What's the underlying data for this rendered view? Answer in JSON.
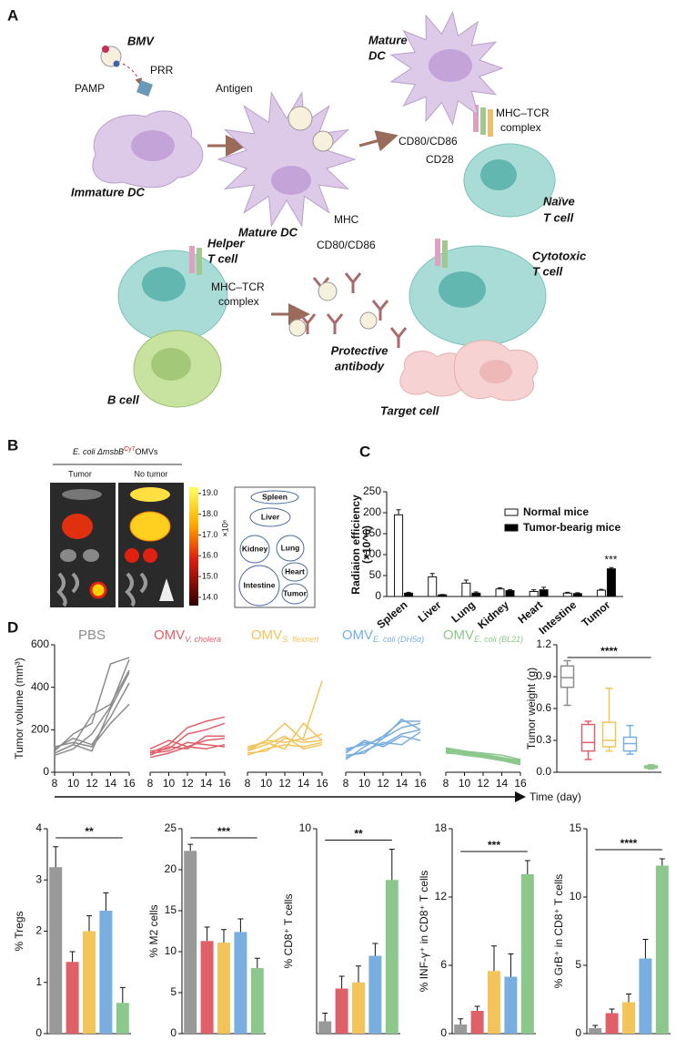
{
  "panel_labels": [
    "A",
    "B",
    "C",
    "D"
  ],
  "diagram": {
    "bmv": "BMV",
    "pamp": "PAMP",
    "prr": "PRR",
    "immature_dc": "Immature DC",
    "antigen": "Antigen",
    "mhc": "MHC",
    "cd80_cd86_1": "CD80/CD86",
    "mature_dc_1": "Mature DC",
    "mature_dc_2": [
      "Mature",
      "DC"
    ],
    "mhc_tcr_1": [
      "MHC–TCR",
      "complex"
    ],
    "cd80_cd86_2": "CD80/CD86",
    "cd28": "CD28",
    "naive_t": [
      "Naïve",
      "T cell"
    ],
    "helper_t": [
      "Helper",
      "T cell"
    ],
    "mhc_tcr_2": [
      "MHC–TCR",
      "complex"
    ],
    "b_cell": "B cell",
    "antibody": [
      "Protective",
      "antibody"
    ],
    "cytotoxic_t": [
      "Cytotoxic",
      "T cell"
    ],
    "target_cell": "Target cell"
  },
  "imaging": {
    "title_pre": "E. coli ΔmsbB",
    "title_sup": "Cy7",
    "title_post": "OMVs",
    "columns": [
      "Tumor",
      "No tumor"
    ],
    "colorbar": {
      "lim": [
        13.6,
        19.3
      ],
      "ticks": [
        {
          "value": 19,
          "label": "19.0"
        },
        {
          "value": 18,
          "label": "18.0"
        },
        {
          "value": 17,
          "label": "17.0"
        },
        {
          "value": 16,
          "label": "16.0"
        },
        {
          "value": 15,
          "label": "15.0"
        },
        {
          "value": 14,
          "label": "14.0"
        }
      ],
      "unit": "×10⁶"
    },
    "organs": [
      "Spleen",
      "Liver",
      "Kidney",
      "Lung",
      "Heart",
      "Intestine",
      "Tumor"
    ]
  },
  "chart_data": [
    {
      "type": "bar",
      "ylabel": [
        "Radiaion efficiency",
        "(×10^6)"
      ],
      "categories": [
        "Spleen",
        "Liver",
        "Lung",
        "Kidney",
        "Heart",
        "Intestine",
        "Tumor"
      ],
      "series": [
        {
          "name": "Normal mice",
          "color": "#ffffff",
          "values": [
            195,
            47,
            32,
            18,
            12,
            8,
            15
          ],
          "errors": [
            12,
            8,
            7,
            3,
            4,
            2,
            2
          ]
        },
        {
          "name": "Tumor-bearig mice",
          "color": "#000000",
          "values": [
            8,
            4,
            8,
            14,
            16,
            7,
            66
          ],
          "errors": [
            2,
            1,
            3,
            2,
            6,
            2,
            3
          ]
        }
      ],
      "ylim": [
        0,
        250
      ],
      "yticks": [
        0,
        50,
        100,
        150,
        200,
        250
      ],
      "legend": "upper right",
      "annotation": "***"
    },
    {
      "type": "line",
      "title": {
        "main": "PBS"
      },
      "color": "#8c8c8c",
      "ylabel": "Tumor volume (mm³)",
      "xlabel": "Time (day)",
      "x": [
        8,
        10,
        12,
        14,
        16
      ],
      "xlim": [
        8,
        16
      ],
      "xticks": [
        8,
        10,
        12,
        14,
        16
      ],
      "ylim": [
        0,
        600
      ],
      "yticks": [
        0,
        200,
        400,
        600
      ],
      "series": [
        {
          "values": [
            90,
            130,
            270,
            320,
            480
          ]
        },
        {
          "values": [
            100,
            180,
            230,
            510,
            540
          ]
        },
        {
          "values": [
            80,
            110,
            180,
            310,
            530
          ]
        },
        {
          "values": [
            120,
            140,
            120,
            230,
            320
          ]
        },
        {
          "values": [
            110,
            160,
            130,
            260,
            420
          ]
        },
        {
          "values": [
            90,
            130,
            100,
            300,
            470
          ]
        }
      ]
    },
    {
      "type": "line",
      "title": {
        "main": "OMV",
        "sub": "V. cholera"
      },
      "color": "#e0606a",
      "x": [
        8,
        10,
        12,
        14,
        16
      ],
      "xlim": [
        8,
        16
      ],
      "xticks": [
        8,
        10,
        12,
        14,
        16
      ],
      "ylim": [
        0,
        600
      ],
      "series": [
        {
          "values": [
            90,
            130,
            210,
            240,
            260
          ]
        },
        {
          "values": [
            80,
            120,
            110,
            170,
            170
          ]
        },
        {
          "values": [
            100,
            110,
            180,
            200,
            230
          ]
        },
        {
          "values": [
            70,
            90,
            120,
            110,
            130
          ]
        },
        {
          "values": [
            110,
            150,
            120,
            150,
            160
          ]
        },
        {
          "values": [
            90,
            100,
            140,
            130,
            120
          ]
        }
      ]
    },
    {
      "type": "line",
      "title": {
        "main": "OMV",
        "sub": "S. flexneri"
      },
      "color": "#f2c45a",
      "x": [
        8,
        10,
        12,
        14,
        16
      ],
      "xlim": [
        8,
        16
      ],
      "xticks": [
        8,
        10,
        12,
        14,
        16
      ],
      "ylim": [
        0,
        600
      ],
      "series": [
        {
          "values": [
            100,
            150,
            140,
            160,
            430
          ]
        },
        {
          "values": [
            110,
            150,
            230,
            150,
            180
          ]
        },
        {
          "values": [
            120,
            140,
            110,
            230,
            150
          ]
        },
        {
          "values": [
            80,
            110,
            130,
            120,
            140
          ]
        },
        {
          "values": [
            90,
            100,
            160,
            140,
            150
          ]
        },
        {
          "values": [
            100,
            130,
            170,
            110,
            130
          ]
        }
      ]
    },
    {
      "type": "line",
      "title": {
        "main": "OMV",
        "sub": "E. coli (DH5α)"
      },
      "color": "#78aee0",
      "x": [
        8,
        10,
        12,
        14,
        16
      ],
      "xlim": [
        8,
        16
      ],
      "xticks": [
        8,
        10,
        12,
        14,
        16
      ],
      "ylim": [
        0,
        600
      ],
      "series": [
        {
          "values": [
            60,
            120,
            170,
            240,
            240
          ]
        },
        {
          "values": [
            100,
            140,
            130,
            180,
            200
          ]
        },
        {
          "values": [
            80,
            90,
            160,
            210,
            230
          ]
        },
        {
          "values": [
            70,
            100,
            140,
            130,
            190
          ]
        },
        {
          "values": [
            90,
            150,
            120,
            170,
            150
          ]
        },
        {
          "values": [
            110,
            130,
            160,
            250,
            200
          ]
        }
      ]
    },
    {
      "type": "line",
      "title": {
        "main": "OMV",
        "sub": "E. coli (BL21)"
      },
      "color": "#8cc88c",
      "x": [
        8,
        10,
        12,
        14,
        16
      ],
      "xlim": [
        8,
        16
      ],
      "xticks": [
        8,
        10,
        12,
        14,
        16
      ],
      "ylim": [
        0,
        600
      ],
      "series": [
        {
          "values": [
            110,
            100,
            90,
            80,
            60
          ]
        },
        {
          "values": [
            100,
            90,
            80,
            70,
            50
          ]
        },
        {
          "values": [
            90,
            85,
            75,
            60,
            40
          ]
        },
        {
          "values": [
            105,
            95,
            80,
            65,
            45
          ]
        },
        {
          "values": [
            95,
            80,
            70,
            55,
            35
          ]
        },
        {
          "values": [
            115,
            100,
            85,
            70,
            55
          ]
        }
      ]
    },
    {
      "type": "box",
      "ylabel": "Tumor weight (g)",
      "ylim": [
        0,
        1.2
      ],
      "yticks": [
        {
          "value": 0,
          "label": "0.0"
        },
        {
          "value": 0.3,
          "label": "0.3"
        },
        {
          "value": 0.6,
          "label": "0.6"
        },
        {
          "value": 0.9,
          "label": "0.9"
        },
        {
          "value": 1.2,
          "label": "1.2"
        }
      ],
      "annotation": "****",
      "colors": [
        "#8c8c8c",
        "#e0606a",
        "#f2c45a",
        "#78aee0",
        "#8cc88c"
      ],
      "boxes": [
        {
          "min": 0.63,
          "q1": 0.8,
          "median": 0.89,
          "q3": 1.0,
          "max": 1.05
        },
        {
          "min": 0.12,
          "q1": 0.2,
          "median": 0.28,
          "q3": 0.45,
          "max": 0.48
        },
        {
          "min": 0.2,
          "q1": 0.24,
          "median": 0.3,
          "q3": 0.47,
          "max": 0.79
        },
        {
          "min": 0.17,
          "q1": 0.2,
          "median": 0.27,
          "q3": 0.33,
          "max": 0.44
        },
        {
          "min": 0.03,
          "q1": 0.04,
          "median": 0.05,
          "q3": 0.06,
          "max": 0.07
        }
      ]
    },
    {
      "type": "bar",
      "ylabel": "% Tregs",
      "ylim": [
        0,
        4
      ],
      "yticks": [
        0,
        1,
        2,
        3,
        4
      ],
      "annotation": "**",
      "colors": [
        "#999999",
        "#e0606a",
        "#f2c45a",
        "#78aee0",
        "#8cc88c"
      ],
      "values": [
        3.25,
        1.4,
        2.0,
        2.4,
        0.6
      ],
      "errors": [
        0.4,
        0.2,
        0.3,
        0.35,
        0.3
      ]
    },
    {
      "type": "bar",
      "ylabel": "% M2 cells",
      "ylim": [
        0,
        25
      ],
      "yticks": [
        0,
        5,
        10,
        15,
        20,
        25
      ],
      "annotation": "***",
      "colors": [
        "#999999",
        "#e0606a",
        "#f2c45a",
        "#78aee0",
        "#8cc88c"
      ],
      "values": [
        22.3,
        11.3,
        11.1,
        12.4,
        8.0
      ],
      "errors": [
        0.8,
        1.7,
        1.6,
        1.6,
        1.2
      ]
    },
    {
      "type": "bar",
      "ylabel": "% CD8⁺ T cells",
      "ylim": [
        0,
        10
      ],
      "yticks": [
        10
      ],
      "annotation": "**",
      "colors": [
        "#999999",
        "#e0606a",
        "#f2c45a",
        "#78aee0",
        "#8cc88c"
      ],
      "values": [
        0.6,
        2.2,
        2.5,
        3.8,
        7.5
      ],
      "errors": [
        0.4,
        0.6,
        0.8,
        0.6,
        1.5
      ]
    },
    {
      "type": "bar",
      "ylabel": "% INF-γ⁺ in CD8⁺ T cells",
      "ylim": [
        0,
        18
      ],
      "yticks": [
        0,
        6,
        12,
        18
      ],
      "annotation": "***",
      "colors": [
        "#999999",
        "#e0606a",
        "#f2c45a",
        "#78aee0",
        "#8cc88c"
      ],
      "values": [
        0.8,
        2.0,
        5.5,
        5.0,
        14.0
      ],
      "errors": [
        0.5,
        0.4,
        2.2,
        2.0,
        1.2
      ]
    },
    {
      "type": "bar",
      "ylabel": "% GrB⁺ in CD8⁺ T cells",
      "ylim": [
        0,
        15
      ],
      "yticks": [
        0,
        5,
        10,
        15
      ],
      "annotation": "****",
      "colors": [
        "#999999",
        "#e0606a",
        "#f2c45a",
        "#78aee0",
        "#8cc88c"
      ],
      "values": [
        0.4,
        1.5,
        2.3,
        5.5,
        12.3
      ],
      "errors": [
        0.2,
        0.3,
        0.6,
        1.4,
        0.5
      ]
    }
  ]
}
